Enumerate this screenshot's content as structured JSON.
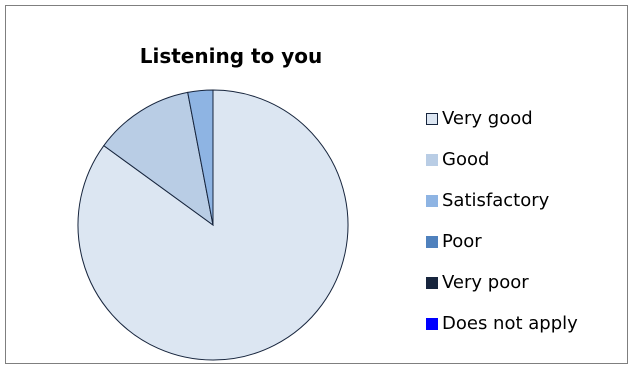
{
  "chart_data": {
    "type": "pie",
    "title": "Listening to you",
    "categories": [
      "Very good",
      "Good",
      "Satisfactory",
      "Poor",
      "Very poor",
      "Does not apply"
    ],
    "values": [
      85,
      12,
      3,
      0,
      0,
      0
    ],
    "colors": [
      "#dce6f2",
      "#b9cde5",
      "#8eb4e3",
      "#4f81bd",
      "#17253d",
      "#0000ff"
    ],
    "legend_position": "right"
  }
}
